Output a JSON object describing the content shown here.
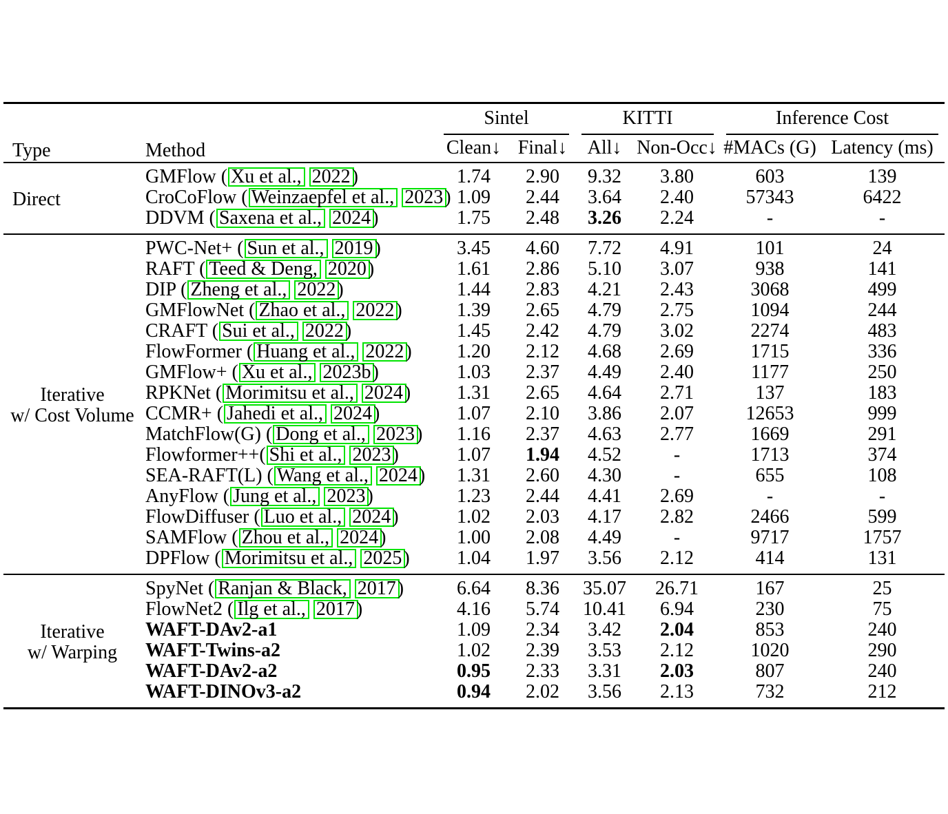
{
  "table": {
    "colors": {
      "citation_box": "#00e400",
      "rule": "#000000"
    },
    "header": {
      "type": "Type",
      "method": "Method",
      "groups": [
        {
          "label": "Sintel",
          "cols": [
            "Clean↓",
            "Final↓"
          ]
        },
        {
          "label": "KITTI",
          "cols": [
            "All↓",
            "Non-Occ↓"
          ]
        },
        {
          "label": "Inference Cost",
          "cols": [
            "#MACs (G)",
            "Latency (ms)"
          ]
        }
      ]
    },
    "sections": [
      {
        "type_lines": [
          "Direct"
        ],
        "rows": [
          {
            "method": {
              "prefix": "GMFlow (",
              "authors": "Xu et al.,",
              "year": "2022",
              "suffix": ")",
              "bold": false
            },
            "values": [
              "1.74",
              "2.90",
              "9.32",
              "3.80",
              "603",
              "139"
            ],
            "bold": []
          },
          {
            "method": {
              "prefix": "CroCoFlow (",
              "authors": "Weinzaepfel et al.,",
              "year": "2023",
              "suffix": ")",
              "bold": false
            },
            "values": [
              "1.09",
              "2.44",
              "3.64",
              "2.40",
              "57343",
              "6422"
            ],
            "bold": []
          },
          {
            "method": {
              "prefix": "DDVM (",
              "authors": "Saxena et al.,",
              "year": "2024",
              "suffix": ")",
              "bold": false
            },
            "values": [
              "1.75",
              "2.48",
              "3.26",
              "2.24",
              "-",
              "-"
            ],
            "bold": [
              2
            ]
          }
        ]
      },
      {
        "type_lines": [
          "Iterative",
          "w/ Cost Volume"
        ],
        "rows": [
          {
            "method": {
              "prefix": "PWC-Net+ (",
              "authors": "Sun et al.,",
              "year": "2019",
              "suffix": ")",
              "bold": false
            },
            "values": [
              "3.45",
              "4.60",
              "7.72",
              "4.91",
              "101",
              "24"
            ],
            "bold": []
          },
          {
            "method": {
              "prefix": "RAFT (",
              "authors": "Teed & Deng,",
              "year": "2020",
              "suffix": ")",
              "bold": false
            },
            "values": [
              "1.61",
              "2.86",
              "5.10",
              "3.07",
              "938",
              "141"
            ],
            "bold": []
          },
          {
            "method": {
              "prefix": "DIP (",
              "authors": "Zheng et al.,",
              "year": "2022",
              "suffix": ")",
              "bold": false
            },
            "values": [
              "1.44",
              "2.83",
              "4.21",
              "2.43",
              "3068",
              "499"
            ],
            "bold": []
          },
          {
            "method": {
              "prefix": "GMFlowNet (",
              "authors": "Zhao et al.,",
              "year": "2022",
              "suffix": ")",
              "bold": false
            },
            "values": [
              "1.39",
              "2.65",
              "4.79",
              "2.75",
              "1094",
              "244"
            ],
            "bold": []
          },
          {
            "method": {
              "prefix": "CRAFT (",
              "authors": "Sui et al.,",
              "year": "2022",
              "suffix": ")",
              "bold": false
            },
            "values": [
              "1.45",
              "2.42",
              "4.79",
              "3.02",
              "2274",
              "483"
            ],
            "bold": []
          },
          {
            "method": {
              "prefix": "FlowFormer (",
              "authors": "Huang et al.,",
              "year": "2022",
              "suffix": ")",
              "bold": false
            },
            "values": [
              "1.20",
              "2.12",
              "4.68",
              "2.69",
              "1715",
              "336"
            ],
            "bold": []
          },
          {
            "method": {
              "prefix": "GMFlow+ (",
              "authors": "Xu et al.,",
              "year": "2023b",
              "suffix": ")",
              "bold": false
            },
            "values": [
              "1.03",
              "2.37",
              "4.49",
              "2.40",
              "1177",
              "250"
            ],
            "bold": []
          },
          {
            "method": {
              "prefix": "RPKNet (",
              "authors": "Morimitsu et al.,",
              "year": "2024",
              "suffix": ")",
              "bold": false
            },
            "values": [
              "1.31",
              "2.65",
              "4.64",
              "2.71",
              "137",
              "183"
            ],
            "bold": []
          },
          {
            "method": {
              "prefix": "CCMR+ (",
              "authors": "Jahedi et al.,",
              "year": "2024",
              "suffix": ")",
              "bold": false
            },
            "values": [
              "1.07",
              "2.10",
              "3.86",
              "2.07",
              "12653",
              "999"
            ],
            "bold": []
          },
          {
            "method": {
              "prefix": "MatchFlow(G) (",
              "authors": "Dong et al.,",
              "year": "2023",
              "suffix": ")",
              "bold": false
            },
            "values": [
              "1.16",
              "2.37",
              "4.63",
              "2.77",
              "1669",
              "291"
            ],
            "bold": []
          },
          {
            "method": {
              "prefix": "Flowformer++(",
              "authors": "Shi et al.,",
              "year": "2023",
              "suffix": ")",
              "bold": false
            },
            "values": [
              "1.07",
              "1.94",
              "4.52",
              "-",
              "1713",
              "374"
            ],
            "bold": [
              1
            ]
          },
          {
            "method": {
              "prefix": "SEA-RAFT(L) (",
              "authors": "Wang et al.,",
              "year": "2024",
              "suffix": ")",
              "bold": false
            },
            "values": [
              "1.31",
              "2.60",
              "4.30",
              "-",
              "655",
              "108"
            ],
            "bold": []
          },
          {
            "method": {
              "prefix": "AnyFlow (",
              "authors": "Jung et al.,",
              "year": "2023",
              "suffix": ")",
              "bold": false
            },
            "values": [
              "1.23",
              "2.44",
              "4.41",
              "2.69",
              "-",
              "-"
            ],
            "bold": []
          },
          {
            "method": {
              "prefix": "FlowDiffuser (",
              "authors": "Luo et al.,",
              "year": "2024",
              "suffix": ")",
              "bold": false
            },
            "values": [
              "1.02",
              "2.03",
              "4.17",
              "2.82",
              "2466",
              "599"
            ],
            "bold": []
          },
          {
            "method": {
              "prefix": "SAMFlow (",
              "authors": "Zhou et al.,",
              "year": "2024",
              "suffix": ")",
              "bold": false
            },
            "values": [
              "1.00",
              "2.08",
              "4.49",
              "-",
              "9717",
              "1757"
            ],
            "bold": []
          },
          {
            "method": {
              "prefix": "DPFlow (",
              "authors": "Morimitsu et al.,",
              "year": "2025",
              "suffix": ")",
              "bold": false
            },
            "values": [
              "1.04",
              "1.97",
              "3.56",
              "2.12",
              "414",
              "131"
            ],
            "bold": []
          }
        ]
      },
      {
        "type_lines": [
          "Iterative",
          "w/ Warping"
        ],
        "rows": [
          {
            "method": {
              "prefix": "SpyNet (",
              "authors": "Ranjan & Black,",
              "year": "2017",
              "suffix": ")",
              "bold": false
            },
            "values": [
              "6.64",
              "8.36",
              "35.07",
              "26.71",
              "167",
              "25"
            ],
            "bold": []
          },
          {
            "method": {
              "prefix": "FlowNet2 (",
              "authors": "Ilg et al.,",
              "year": "2017",
              "suffix": ")",
              "bold": false
            },
            "values": [
              "4.16",
              "5.74",
              "10.41",
              "6.94",
              "230",
              "75"
            ],
            "bold": []
          },
          {
            "method": {
              "prefix": "WAFT-DAv2-a1",
              "authors": null,
              "year": null,
              "suffix": "",
              "bold": true
            },
            "values": [
              "1.09",
              "2.34",
              "3.42",
              "2.04",
              "853",
              "240"
            ],
            "bold": [
              3
            ]
          },
          {
            "method": {
              "prefix": "WAFT-Twins-a2",
              "authors": null,
              "year": null,
              "suffix": "",
              "bold": true
            },
            "values": [
              "1.02",
              "2.39",
              "3.53",
              "2.12",
              "1020",
              "290"
            ],
            "bold": []
          },
          {
            "method": {
              "prefix": "WAFT-DAv2-a2",
              "authors": null,
              "year": null,
              "suffix": "",
              "bold": true
            },
            "values": [
              "0.95",
              "2.33",
              "3.31",
              "2.03",
              "807",
              "240"
            ],
            "bold": [
              0,
              3
            ]
          },
          {
            "method": {
              "prefix": "WAFT-DINOv3-a2",
              "authors": null,
              "year": null,
              "suffix": "",
              "bold": true
            },
            "values": [
              "0.94",
              "2.02",
              "3.56",
              "2.13",
              "732",
              "212"
            ],
            "bold": [
              0
            ]
          }
        ]
      }
    ]
  }
}
